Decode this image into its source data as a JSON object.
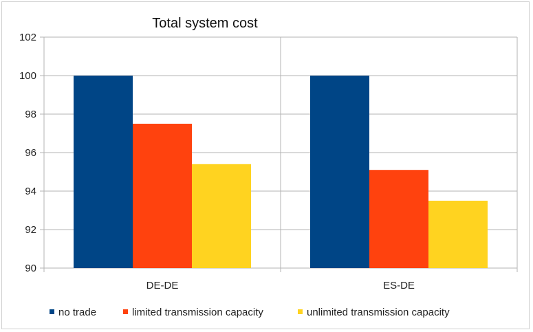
{
  "chart_data": {
    "type": "bar",
    "title": "Total system cost",
    "categories": [
      "DE-DE",
      "ES-DE"
    ],
    "series": [
      {
        "name": "no trade",
        "color": "#004586",
        "values": [
          100,
          100
        ]
      },
      {
        "name": "limited transmission capacity",
        "color": "#ff420e",
        "values": [
          97.5,
          95.1
        ]
      },
      {
        "name": "unlimited transmission capacity",
        "color": "#ffd320",
        "values": [
          95.4,
          93.5
        ]
      }
    ],
    "ylim": [
      90,
      102
    ],
    "yticks": [
      "90",
      "92",
      "94",
      "96",
      "98",
      "100",
      "102"
    ],
    "grid": true,
    "legend_position": "bottom",
    "xlabel": "",
    "ylabel": ""
  }
}
